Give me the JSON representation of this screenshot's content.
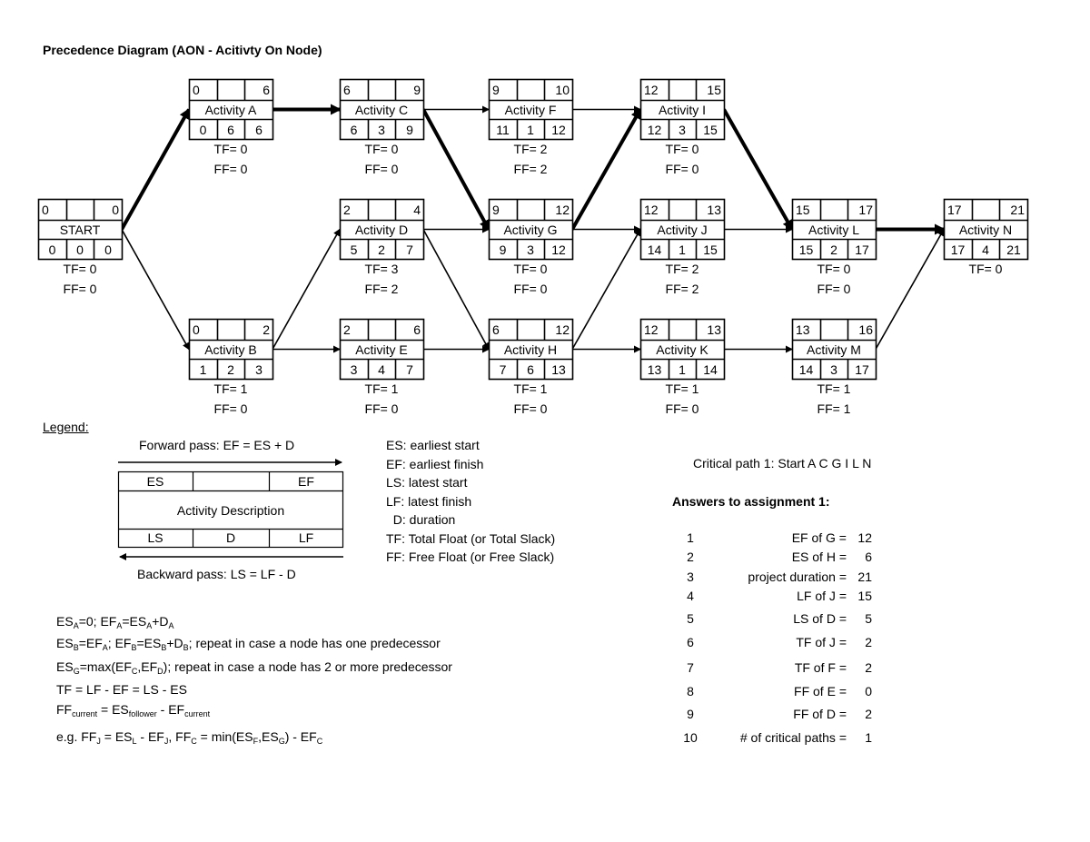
{
  "title": "Precedence Diagram (AON - Acitivty On Node)",
  "nodes": [
    {
      "id": "S",
      "name": "START",
      "es": "0",
      "ef": "0",
      "ls": "0",
      "d": "0",
      "lf": "0",
      "tf": "TF= 0",
      "ff": "FF= 0"
    },
    {
      "id": "A",
      "name": "Activity A",
      "es": "0",
      "ef": "6",
      "ls": "0",
      "d": "6",
      "lf": "6",
      "tf": "TF= 0",
      "ff": "FF= 0"
    },
    {
      "id": "B",
      "name": "Activity B",
      "es": "0",
      "ef": "2",
      "ls": "1",
      "d": "2",
      "lf": "3",
      "tf": "TF= 1",
      "ff": "FF= 0"
    },
    {
      "id": "C",
      "name": "Activity C",
      "es": "6",
      "ef": "9",
      "ls": "6",
      "d": "3",
      "lf": "9",
      "tf": "TF= 0",
      "ff": "FF= 0"
    },
    {
      "id": "D",
      "name": "Activity D",
      "es": "2",
      "ef": "4",
      "ls": "5",
      "d": "2",
      "lf": "7",
      "tf": "TF= 3",
      "ff": "FF= 2"
    },
    {
      "id": "E",
      "name": "Activity E",
      "es": "2",
      "ef": "6",
      "ls": "3",
      "d": "4",
      "lf": "7",
      "tf": "TF= 1",
      "ff": "FF= 0"
    },
    {
      "id": "F",
      "name": "Activity F",
      "es": "9",
      "ef": "10",
      "ls": "11",
      "d": "1",
      "lf": "12",
      "tf": "TF= 2",
      "ff": "FF= 2"
    },
    {
      "id": "G",
      "name": "Activity G",
      "es": "9",
      "ef": "12",
      "ls": "9",
      "d": "3",
      "lf": "12",
      "tf": "TF= 0",
      "ff": "FF= 0"
    },
    {
      "id": "H",
      "name": "Activity H",
      "es": "6",
      "ef": "12",
      "ls": "7",
      "d": "6",
      "lf": "13",
      "tf": "TF= 1",
      "ff": "FF= 0"
    },
    {
      "id": "I",
      "name": "Activity I",
      "es": "12",
      "ef": "15",
      "ls": "12",
      "d": "3",
      "lf": "15",
      "tf": "TF= 0",
      "ff": "FF= 0"
    },
    {
      "id": "J",
      "name": "Activity J",
      "es": "12",
      "ef": "13",
      "ls": "14",
      "d": "1",
      "lf": "15",
      "tf": "TF= 2",
      "ff": "FF= 2"
    },
    {
      "id": "K",
      "name": "Activity K",
      "es": "12",
      "ef": "13",
      "ls": "13",
      "d": "1",
      "lf": "14",
      "tf": "TF= 1",
      "ff": "FF= 0"
    },
    {
      "id": "L",
      "name": "Activity L",
      "es": "15",
      "ef": "17",
      "ls": "15",
      "d": "2",
      "lf": "17",
      "tf": "TF= 0",
      "ff": "FF= 0"
    },
    {
      "id": "M",
      "name": "Activity M",
      "es": "13",
      "ef": "16",
      "ls": "14",
      "d": "3",
      "lf": "17",
      "tf": "TF= 1",
      "ff": "FF= 1"
    },
    {
      "id": "N",
      "name": "Activity N",
      "es": "17",
      "ef": "21",
      "ls": "17",
      "d": "4",
      "lf": "21",
      "tf": "TF= 0"
    }
  ],
  "edges": [
    {
      "from": "S",
      "to": "A",
      "critical": true
    },
    {
      "from": "S",
      "to": "B",
      "critical": false
    },
    {
      "from": "A",
      "to": "C",
      "critical": true
    },
    {
      "from": "B",
      "to": "D",
      "critical": false
    },
    {
      "from": "B",
      "to": "E",
      "critical": false
    },
    {
      "from": "C",
      "to": "F",
      "critical": false
    },
    {
      "from": "C",
      "to": "G",
      "critical": true
    },
    {
      "from": "D",
      "to": "G",
      "critical": false
    },
    {
      "from": "D",
      "to": "H",
      "critical": false
    },
    {
      "from": "E",
      "to": "H",
      "critical": false
    },
    {
      "from": "F",
      "to": "I",
      "critical": false
    },
    {
      "from": "G",
      "to": "I",
      "critical": true
    },
    {
      "from": "G",
      "to": "J",
      "critical": false
    },
    {
      "from": "H",
      "to": "J",
      "critical": false
    },
    {
      "from": "H",
      "to": "K",
      "critical": false
    },
    {
      "from": "I",
      "to": "L",
      "critical": true
    },
    {
      "from": "J",
      "to": "L",
      "critical": false
    },
    {
      "from": "K",
      "to": "M",
      "critical": false
    },
    {
      "from": "L",
      "to": "N",
      "critical": true
    },
    {
      "from": "M",
      "to": "N",
      "critical": false
    }
  ],
  "legend": {
    "label": "Legend:",
    "forward": "Forward pass: EF = ES + D",
    "backward": "Backward pass: LS = LF - D",
    "box": {
      "es": "ES",
      "ef": "EF",
      "desc": "Activity Description",
      "ls": "LS",
      "d": "D",
      "lf": "LF"
    },
    "definitions": [
      "ES: earliest start",
      "EF: earliest finish",
      "LS: latest start",
      "LF: latest finish",
      "  D: duration",
      "TF: Total Float (or Total Slack)",
      "FF: Free Float (or Free Slack)"
    ]
  },
  "formulas": [
    [
      [
        "ES",
        0
      ],
      [
        "A",
        1
      ],
      [
        "=0; EF",
        0
      ],
      [
        "A",
        1
      ],
      [
        "=ES",
        0
      ],
      [
        "A",
        1
      ],
      [
        "+D",
        0
      ],
      [
        "A",
        1
      ]
    ],
    [
      [
        "ES",
        0
      ],
      [
        "B",
        1
      ],
      [
        "=EF",
        0
      ],
      [
        "A",
        1
      ],
      [
        "; EF",
        0
      ],
      [
        "B",
        1
      ],
      [
        "=ES",
        0
      ],
      [
        "B",
        1
      ],
      [
        "+D",
        0
      ],
      [
        "B",
        1
      ],
      [
        "; repeat in case a node has one predecessor",
        0
      ]
    ],
    [
      [
        "ES",
        0
      ],
      [
        "G",
        1
      ],
      [
        "=max(EF",
        0
      ],
      [
        "C",
        1
      ],
      [
        ",EF",
        0
      ],
      [
        "D",
        1
      ],
      [
        "); repeat in case a node has 2 or more predecessor",
        0
      ]
    ],
    [
      [
        "TF = LF - EF = LS - ES",
        0
      ]
    ],
    [
      [
        "FF",
        0
      ],
      [
        "current",
        1
      ],
      [
        " = ES",
        0
      ],
      [
        "follower",
        1
      ],
      [
        " - EF",
        0
      ],
      [
        "current",
        1
      ]
    ],
    [
      [
        "e.g. FF",
        0
      ],
      [
        "J",
        1
      ],
      [
        " = ES",
        0
      ],
      [
        "L",
        1
      ],
      [
        " - EF",
        0
      ],
      [
        "J",
        1
      ],
      [
        ", FF",
        0
      ],
      [
        "C",
        1
      ],
      [
        " = min(ES",
        0
      ],
      [
        "F",
        1
      ],
      [
        ",ES",
        0
      ],
      [
        "G",
        1
      ],
      [
        ") - EF",
        0
      ],
      [
        "C",
        1
      ]
    ]
  ],
  "critical_path": "Critical path 1: Start A C G I L N",
  "answers": {
    "title": "Answers to assignment 1:",
    "items": [
      {
        "n": "1",
        "label": "EF of G =",
        "value": "12"
      },
      {
        "n": "2",
        "label": "ES of H =",
        "value": "6"
      },
      {
        "n": "3",
        "label": "project duration =",
        "value": "21"
      },
      {
        "n": "4",
        "label": "LF of J =",
        "value": "15"
      },
      {
        "n": "5",
        "label": "LS of D =",
        "value": "5"
      },
      {
        "n": "6",
        "label": "TF of J =",
        "value": "2"
      },
      {
        "n": "7",
        "label": "TF of F =",
        "value": "2"
      },
      {
        "n": "8",
        "label": "FF of E =",
        "value": "0"
      },
      {
        "n": "9",
        "label": "FF of D =",
        "value": "2"
      },
      {
        "n": "10",
        "label": "# of critical paths =",
        "value": "1"
      }
    ]
  }
}
